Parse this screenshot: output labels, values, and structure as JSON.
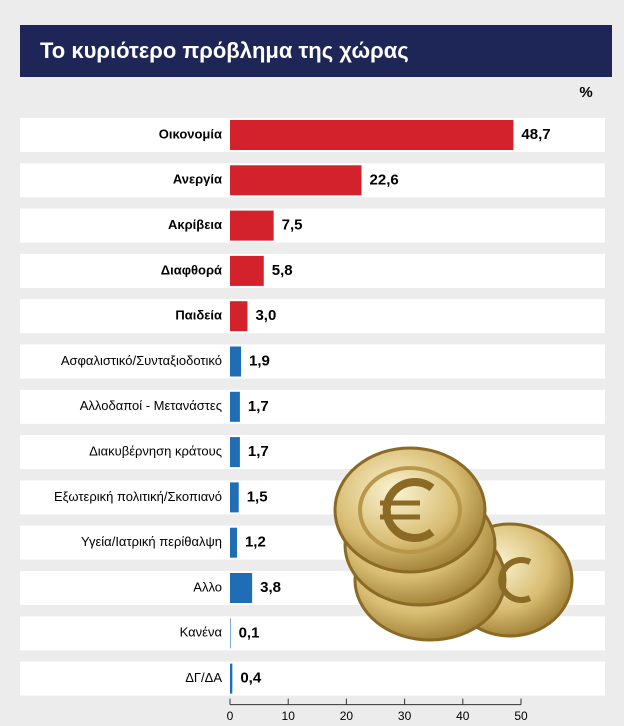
{
  "chart_data": {
    "type": "bar",
    "orientation": "horizontal",
    "title": "Το κυριότερο πρόβλημα της χώρας",
    "unit": "%",
    "categories": [
      "Οικονομία",
      "Ανεργία",
      "Ακρίβεια",
      "Διαφθορά",
      "Παιδεία",
      "Ασφαλιστικό/Συνταξιοδοτικό",
      "Αλλοδαποί - Μετανάστες",
      "Διακυβέρνηση κράτους",
      "Εξωτερική πολιτική/Σκοπιανό",
      "Υγεία/Ιατρική περίθαλψη",
      "Αλλο",
      "Κανένα",
      "ΔΓ/ΔΑ"
    ],
    "values": [
      48.7,
      22.6,
      7.5,
      5.8,
      3.0,
      1.9,
      1.7,
      1.7,
      1.5,
      1.2,
      3.8,
      0.1,
      0.4
    ],
    "value_labels": [
      "48,7",
      "22,6",
      "7,5",
      "5,8",
      "3,0",
      "1,9",
      "1,7",
      "1,7",
      "1,5",
      "1,2",
      "3,8",
      "0,1",
      "0,4"
    ],
    "colors": [
      "#d3222c",
      "#d3222c",
      "#d3222c",
      "#d3222c",
      "#d3222c",
      "#1f6db5",
      "#1f6db5",
      "#1f6db5",
      "#1f6db5",
      "#1f6db5",
      "#1f6db5",
      "#1f6db5",
      "#1f6db5"
    ],
    "xlim": [
      0,
      50
    ],
    "xticks": [
      0,
      10,
      20,
      30,
      40,
      50
    ]
  }
}
